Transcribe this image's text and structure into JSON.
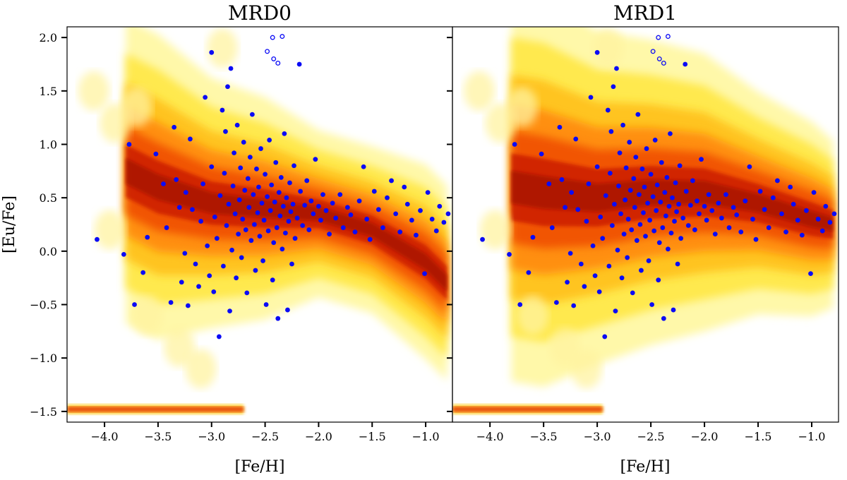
{
  "chart_data": [
    {
      "type": "scatter",
      "title": "MRD0",
      "xlabel": "[Fe/H]",
      "ylabel": "[Eu/Fe]",
      "xlim": [
        -4.35,
        -0.75
      ],
      "ylim": [
        -1.6,
        2.1
      ],
      "xticks": [
        -4.0,
        -3.5,
        -3.0,
        -2.5,
        -2.0,
        -1.5,
        -1.0
      ],
      "xtick_labels": [
        "−4.0",
        "−3.5",
        "−3.0",
        "−2.5",
        "−2.0",
        "−1.5",
        "−1.0"
      ],
      "yticks": [
        -1.5,
        -1.0,
        -0.5,
        0.0,
        0.5,
        1.0,
        1.5,
        2.0
      ],
      "ytick_labels": [
        "−1.5",
        "−1.0",
        "−0.5",
        "0.0",
        "0.5",
        "1.0",
        "1.5",
        "2.0"
      ],
      "background": "density map (white → yellow → orange → red → dark red)",
      "density_ridge": [
        {
          "x": -3.8,
          "y_center": 0.75,
          "y_width": 0.55
        },
        {
          "x": -3.5,
          "y_center": 0.6,
          "y_width": 0.55
        },
        {
          "x": -3.0,
          "y_center": 0.45,
          "y_width": 0.45
        },
        {
          "x": -2.5,
          "y_center": 0.4,
          "y_width": 0.4
        },
        {
          "x": -2.0,
          "y_center": 0.35,
          "y_width": 0.3
        },
        {
          "x": -1.5,
          "y_center": 0.2,
          "y_width": 0.3
        },
        {
          "x": -1.0,
          "y_center": -0.1,
          "y_width": 0.35
        },
        {
          "x": -0.8,
          "y_center": -0.3,
          "y_width": 0.35
        }
      ],
      "floor_band": {
        "y": -1.48,
        "x_range": [
          -4.35,
          -2.7
        ]
      }
    },
    {
      "type": "scatter",
      "title": "MRD1",
      "xlabel": "[Fe/H]",
      "ylabel": "",
      "xlim": [
        -4.35,
        -0.75
      ],
      "ylim": [
        -1.6,
        2.1
      ],
      "xticks": [
        -4.0,
        -3.5,
        -3.0,
        -2.5,
        -2.0,
        -1.5,
        -1.0
      ],
      "xtick_labels": [
        "−4.0",
        "−3.5",
        "−3.0",
        "−2.5",
        "−2.0",
        "−1.5",
        "−1.0"
      ],
      "yticks": [
        -1.5,
        -1.0,
        -0.5,
        0.0,
        0.5,
        1.0,
        1.5,
        2.0
      ],
      "background": "density map (white → yellow → orange → red → dark red)",
      "density_ridge": [
        {
          "x": -3.8,
          "y_center": 0.6,
          "y_width": 0.7
        },
        {
          "x": -3.5,
          "y_center": 0.55,
          "y_width": 0.7
        },
        {
          "x": -3.0,
          "y_center": 0.5,
          "y_width": 0.6
        },
        {
          "x": -2.5,
          "y_center": 0.55,
          "y_width": 0.55
        },
        {
          "x": -2.0,
          "y_center": 0.55,
          "y_width": 0.5
        },
        {
          "x": -1.5,
          "y_center": 0.45,
          "y_width": 0.4
        },
        {
          "x": -1.0,
          "y_center": 0.3,
          "y_width": 0.35
        },
        {
          "x": -0.8,
          "y_center": 0.25,
          "y_width": 0.3
        }
      ],
      "floor_band": {
        "y": -1.48,
        "x_range": [
          -4.35,
          -2.95
        ]
      }
    }
  ],
  "observed_stars": {
    "marker_color": "#0b0bf5",
    "filled": [
      [
        -4.07,
        0.11
      ],
      [
        -3.82,
        -0.03
      ],
      [
        -3.77,
        1.0
      ],
      [
        -3.72,
        -0.5
      ],
      [
        -3.64,
        -0.2
      ],
      [
        -3.6,
        0.13
      ],
      [
        -3.52,
        0.91
      ],
      [
        -3.45,
        0.63
      ],
      [
        -3.42,
        0.22
      ],
      [
        -3.38,
        -0.48
      ],
      [
        -3.35,
        1.16
      ],
      [
        -3.33,
        0.67
      ],
      [
        -3.3,
        0.41
      ],
      [
        -3.28,
        -0.29
      ],
      [
        -3.25,
        -0.02
      ],
      [
        -3.24,
        0.55
      ],
      [
        -3.22,
        -0.51
      ],
      [
        -3.2,
        1.05
      ],
      [
        -3.18,
        0.39
      ],
      [
        -3.15,
        -0.12
      ],
      [
        -3.12,
        -0.33
      ],
      [
        -3.1,
        0.28
      ],
      [
        -3.08,
        0.63
      ],
      [
        -3.06,
        1.44
      ],
      [
        -3.04,
        0.05
      ],
      [
        -3.02,
        -0.23
      ],
      [
        -3.0,
        0.79
      ],
      [
        -3.0,
        1.86
      ],
      [
        -2.98,
        -0.38
      ],
      [
        -2.97,
        0.32
      ],
      [
        -2.95,
        0.12
      ],
      [
        -2.93,
        -0.8
      ],
      [
        -2.92,
        0.52
      ],
      [
        -2.9,
        1.32
      ],
      [
        -2.89,
        -0.14
      ],
      [
        -2.88,
        0.73
      ],
      [
        -2.87,
        1.12
      ],
      [
        -2.86,
        0.24
      ],
      [
        -2.85,
        1.54
      ],
      [
        -2.84,
        0.44
      ],
      [
        -2.83,
        -0.56
      ],
      [
        -2.82,
        1.71
      ],
      [
        -2.81,
        0.01
      ],
      [
        -2.8,
        0.61
      ],
      [
        -2.79,
        0.92
      ],
      [
        -2.78,
        0.35
      ],
      [
        -2.77,
        -0.25
      ],
      [
        -2.76,
        1.18
      ],
      [
        -2.75,
        0.16
      ],
      [
        -2.74,
        0.48
      ],
      [
        -2.73,
        0.78
      ],
      [
        -2.72,
        -0.06
      ],
      [
        -2.71,
        0.3
      ],
      [
        -2.7,
        1.02
      ],
      [
        -2.69,
        0.57
      ],
      [
        -2.68,
        0.2
      ],
      [
        -2.67,
        -0.39
      ],
      [
        -2.66,
        0.68
      ],
      [
        -2.65,
        0.41
      ],
      [
        -2.64,
        0.88
      ],
      [
        -2.63,
        0.1
      ],
      [
        -2.62,
        1.28
      ],
      [
        -2.61,
        0.53
      ],
      [
        -2.6,
        0.25
      ],
      [
        -2.59,
        -0.18
      ],
      [
        -2.58,
        0.77
      ],
      [
        -2.57,
        0.36
      ],
      [
        -2.56,
        0.6
      ],
      [
        -2.55,
        0.14
      ],
      [
        -2.54,
        0.96
      ],
      [
        -2.53,
        0.45
      ],
      [
        -2.52,
        -0.09
      ],
      [
        -2.51,
        0.29
      ],
      [
        -2.5,
        0.72
      ],
      [
        -2.49,
        -0.5
      ],
      [
        -2.48,
        0.51
      ],
      [
        -2.47,
        0.19
      ],
      [
        -2.46,
        1.04
      ],
      [
        -2.45,
        0.38
      ],
      [
        -2.44,
        0.62
      ],
      [
        -2.43,
        -0.27
      ],
      [
        -2.42,
        0.08
      ],
      [
        -2.41,
        0.46
      ],
      [
        -2.4,
        0.83
      ],
      [
        -2.39,
        0.22
      ],
      [
        -2.38,
        -0.63
      ],
      [
        -2.37,
        0.55
      ],
      [
        -2.36,
        0.33
      ],
      [
        -2.35,
        0.69
      ],
      [
        -2.34,
        0.02
      ],
      [
        -2.33,
        0.42
      ],
      [
        -2.32,
        1.1
      ],
      [
        -2.31,
        0.17
      ],
      [
        -2.3,
        0.5
      ],
      [
        -2.29,
        -0.55
      ],
      [
        -2.28,
        0.28
      ],
      [
        -2.27,
        0.64
      ],
      [
        -2.26,
        0.37
      ],
      [
        -2.25,
        -0.12
      ],
      [
        -2.24,
        0.44
      ],
      [
        -2.23,
        0.8
      ],
      [
        -2.22,
        0.12
      ],
      [
        -2.2,
        0.31
      ],
      [
        -2.18,
        1.75
      ],
      [
        -2.17,
        0.56
      ],
      [
        -2.15,
        0.24
      ],
      [
        -2.13,
        0.43
      ],
      [
        -2.11,
        0.66
      ],
      [
        -2.09,
        0.2
      ],
      [
        -2.07,
        0.47
      ],
      [
        -2.05,
        0.35
      ],
      [
        -2.03,
        0.86
      ],
      [
        -2.0,
        0.42
      ],
      [
        -1.98,
        0.29
      ],
      [
        -1.96,
        0.53
      ],
      [
        -1.93,
        0.38
      ],
      [
        -1.9,
        0.16
      ],
      [
        -1.87,
        0.45
      ],
      [
        -1.84,
        0.31
      ],
      [
        -1.8,
        0.53
      ],
      [
        -1.77,
        0.22
      ],
      [
        -1.73,
        0.41
      ],
      [
        -1.7,
        0.34
      ],
      [
        -1.66,
        0.18
      ],
      [
        -1.62,
        0.47
      ],
      [
        -1.58,
        0.79
      ],
      [
        -1.55,
        0.3
      ],
      [
        -1.52,
        0.11
      ],
      [
        -1.48,
        0.56
      ],
      [
        -1.44,
        0.39
      ],
      [
        -1.4,
        0.22
      ],
      [
        -1.36,
        0.5
      ],
      [
        -1.32,
        0.66
      ],
      [
        -1.28,
        0.35
      ],
      [
        -1.24,
        0.18
      ],
      [
        -1.2,
        0.6
      ],
      [
        -1.17,
        0.44
      ],
      [
        -1.13,
        0.29
      ],
      [
        -1.09,
        0.15
      ],
      [
        -1.05,
        0.38
      ],
      [
        -1.01,
        -0.21
      ],
      [
        -0.98,
        0.55
      ],
      [
        -0.94,
        0.3
      ],
      [
        -0.9,
        0.19
      ],
      [
        -0.87,
        0.42
      ],
      [
        -0.83,
        0.27
      ],
      [
        -0.79,
        0.35
      ]
    ],
    "open": [
      [
        -2.43,
        2.0
      ],
      [
        -2.34,
        2.01
      ],
      [
        -2.48,
        1.87
      ],
      [
        -2.42,
        1.8
      ],
      [
        -2.38,
        1.76
      ]
    ]
  }
}
